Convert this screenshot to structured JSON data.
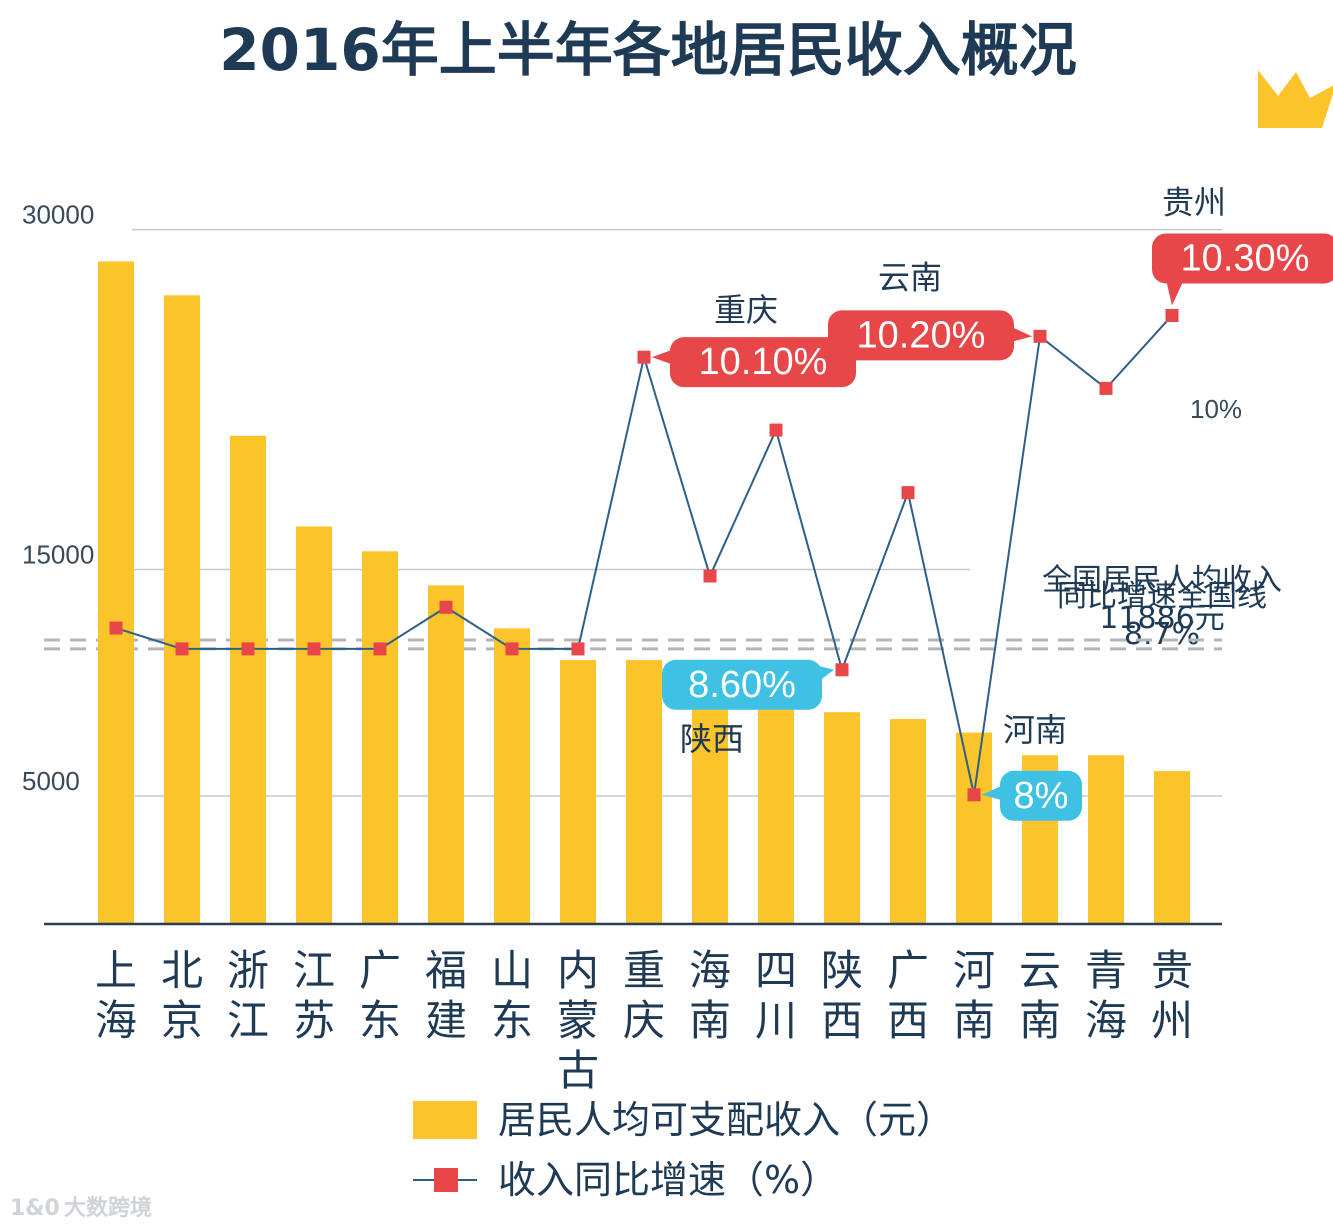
{
  "title": "2016年上半年各地居民收入概况",
  "chart_data": {
    "type": "bar+line",
    "categories": [
      "上海",
      "北京",
      "浙江",
      "江苏",
      "广东",
      "福建",
      "山东",
      "内蒙古",
      "重庆",
      "海南",
      "四川",
      "陕西",
      "广西",
      "河南",
      "云南",
      "青海",
      "贵州"
    ],
    "category_labels": [
      "上\n海",
      "北\n京",
      "浙\n江",
      "江\n苏",
      "广\n东",
      "福\n建",
      "山\n东",
      "内\n蒙\n古",
      "重\n庆",
      "海\n南",
      "四\n川",
      "陕\n西",
      "广\n西",
      "河\n南",
      "云\n南",
      "青\n海",
      "贵\n州"
    ],
    "series": [
      {
        "name": "居民人均可支配收入（元）",
        "type": "bar",
        "color": "#fbc42a",
        "values": [
          28600,
          27100,
          20900,
          16900,
          15800,
          14300,
          12400,
          11000,
          11000,
          10200,
          8900,
          8700,
          8400,
          7800,
          6800,
          6800,
          6100
        ]
      },
      {
        "name": "收入同比增速（%）",
        "type": "line",
        "color": "#2f5f88",
        "marker_color": "#e8474a",
        "values": [
          8.8,
          8.7,
          8.7,
          8.7,
          8.7,
          8.9,
          8.7,
          8.7,
          10.1,
          9.05,
          9.75,
          8.6,
          9.45,
          8.0,
          10.2,
          9.95,
          10.3
        ]
      }
    ],
    "y_left": {
      "ticks": [
        "30000",
        "15000",
        "5000"
      ],
      "tick_values": [
        30000,
        15000,
        5000
      ],
      "range": [
        -650,
        34400
      ]
    },
    "y_right": {
      "label": "10%",
      "label_value": 10.0,
      "range": [
        7.38,
        11.19
      ]
    },
    "reference_lines": [
      {
        "label_lines": [
          "同比增速全国线",
          "8.7%"
        ],
        "axis": "right",
        "value": 8.7
      },
      {
        "label_lines": [
          "全国居民人均收入",
          "11886元"
        ],
        "axis": "left",
        "value": 11886
      }
    ],
    "callouts": [
      {
        "category_index": 8,
        "province": "重庆",
        "text": "10.10%",
        "color": "#e8474a"
      },
      {
        "category_index": 14,
        "province": "云南",
        "text": "10.20%",
        "color": "#e8474a"
      },
      {
        "category_index": 16,
        "province": "贵州",
        "text": "10.30%",
        "color": "#e8474a"
      },
      {
        "category_index": 11,
        "province": "陕西",
        "text": "8.60%",
        "color": "#3fc1e4"
      },
      {
        "category_index": 13,
        "province": "河南",
        "text": "8%",
        "color": "#3fc1e4"
      }
    ],
    "grid": true,
    "legend_position": "bottom"
  },
  "watermark": "大数跨境",
  "watermark_logo": "1&0"
}
